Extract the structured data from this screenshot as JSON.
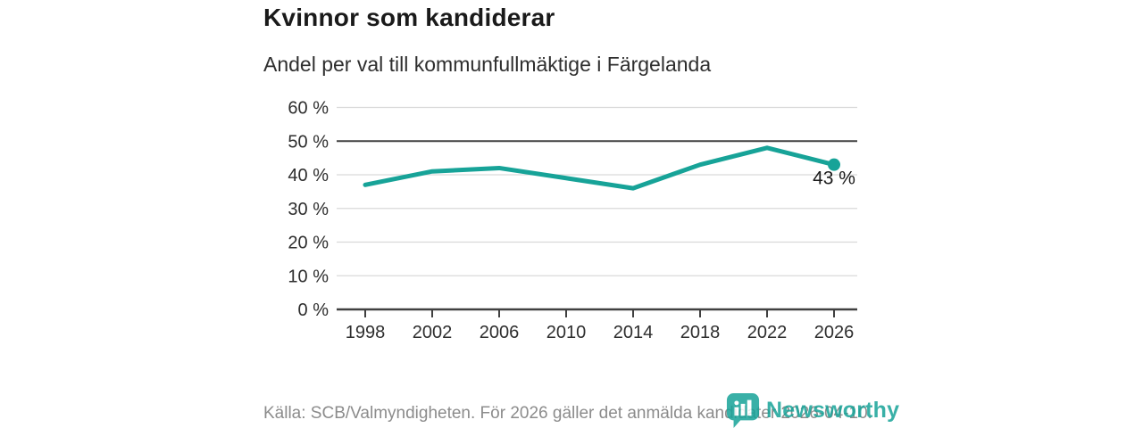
{
  "chart_data": {
    "type": "line",
    "title": "Kvinnor som kandiderar",
    "subtitle": "Andel per val till kommunfullmäktige i Färgelanda",
    "x": [
      1998,
      2002,
      2006,
      2010,
      2014,
      2018,
      2022,
      2026
    ],
    "values": [
      37,
      41,
      42,
      39,
      36,
      43,
      48,
      43
    ],
    "ylim": [
      0,
      60
    ],
    "y_ticks": [
      0,
      10,
      20,
      30,
      40,
      50,
      60
    ],
    "y_tick_suffix": " %",
    "reference_line_y": 50,
    "end_point_label": "43 %",
    "grid": true,
    "legend_position": "none",
    "line_color": "#17a398"
  },
  "footer": {
    "source": "Källa: SCB/Valmyndigheten. För 2026 gäller det anmälda kandidater 2026-04-10.",
    "brand_name": "Newsworthy"
  },
  "colors": {
    "accent": "#17a398",
    "title_text": "#1a1a1a",
    "body_text": "#2e2e2e",
    "grid_line": "#d9d9d9",
    "axis_line": "#404040",
    "muted_text": "#8c8c8c"
  }
}
